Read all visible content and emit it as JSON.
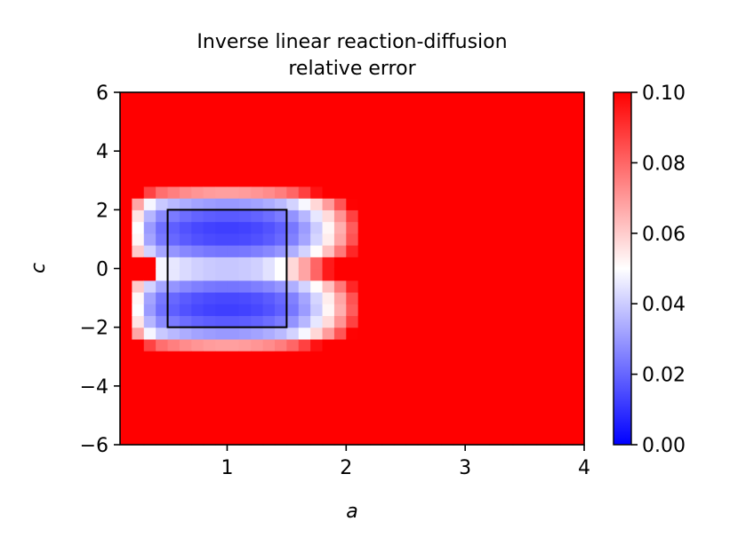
{
  "chart_data": {
    "type": "heatmap",
    "title_line1": "Inverse linear reaction-diffusion",
    "title_line2": "relative error",
    "xlabel": "a",
    "ylabel": "c",
    "xlim": [
      0.1,
      4.0
    ],
    "ylim": [
      -6,
      6
    ],
    "x_ticks": [
      1,
      2,
      3,
      4
    ],
    "x_tick_labels": [
      "1",
      "2",
      "3",
      "4"
    ],
    "y_ticks": [
      6,
      4,
      2,
      0,
      -2,
      -4,
      -6
    ],
    "y_tick_labels": [
      "6",
      "4",
      "2",
      "0",
      "−2",
      "−4",
      "−6"
    ],
    "colorbar": {
      "vmin": 0.0,
      "vmax": 0.1,
      "colormap": "bwr",
      "ticks": [
        0.0,
        0.02,
        0.04,
        0.06,
        0.08,
        0.1
      ],
      "tick_labels": [
        "0.00",
        "0.02",
        "0.04",
        "0.06",
        "0.08",
        "0.10"
      ]
    },
    "grid": {
      "nx": 39,
      "ny": 30,
      "a_range": [
        0.1,
        4.0
      ],
      "c_range": [
        -6,
        6
      ],
      "description": "relative error; low (~0.01) in two lobes centered near c=+1.3 and c=-1.3 for a in 0.5-1.5, rising to >=0.1 (saturated) away from them"
    },
    "training_box": {
      "a": [
        0.5,
        1.5
      ],
      "c": [
        -2,
        2
      ]
    },
    "colors": {
      "low": "#0000ff",
      "mid": "#ffffff",
      "high": "#ff0000",
      "box": "#000000"
    }
  }
}
